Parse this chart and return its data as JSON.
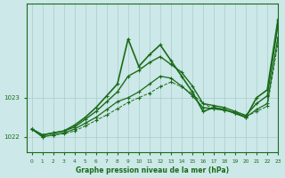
{
  "title": "Graphe pression niveau de la mer (hPa)",
  "bg_color": "#cce8e8",
  "grid_color": "#aacccc",
  "line_color": "#1a6b1a",
  "xlim": [
    -0.5,
    23
  ],
  "ylim": [
    1021.6,
    1025.4
  ],
  "yticks": [
    1022,
    1023
  ],
  "xticks": [
    0,
    1,
    2,
    3,
    4,
    5,
    6,
    7,
    8,
    9,
    10,
    11,
    12,
    13,
    14,
    15,
    16,
    17,
    18,
    19,
    20,
    21,
    22,
    23
  ],
  "series": [
    {
      "y": [
        1022.2,
        1022.05,
        1022.1,
        1022.15,
        1022.3,
        1022.5,
        1022.75,
        1023.05,
        1023.35,
        1024.5,
        1023.8,
        1024.1,
        1024.35,
        1023.95,
        1023.55,
        1023.15,
        1022.65,
        1022.75,
        1022.7,
        1022.6,
        1022.5,
        1023.0,
        1023.2,
        1025.0
      ],
      "linestyle": "-",
      "linewidth": 1.2,
      "marker": "+"
    },
    {
      "y": [
        1022.2,
        1022.05,
        1022.1,
        1022.15,
        1022.25,
        1022.45,
        1022.65,
        1022.9,
        1023.15,
        1023.55,
        1023.7,
        1023.9,
        1024.05,
        1023.85,
        1023.65,
        1023.3,
        1022.85,
        1022.8,
        1022.75,
        1022.65,
        1022.55,
        1022.85,
        1023.05,
        1024.85
      ],
      "linestyle": "-",
      "linewidth": 1.0,
      "marker": "+"
    },
    {
      "y": [
        1022.2,
        1022.0,
        1022.05,
        1022.1,
        1022.2,
        1022.35,
        1022.5,
        1022.7,
        1022.9,
        1023.0,
        1023.15,
        1023.35,
        1023.55,
        1023.5,
        1023.3,
        1023.05,
        1022.75,
        1022.72,
        1022.68,
        1022.62,
        1022.5,
        1022.7,
        1022.85,
        1024.55
      ],
      "linestyle": "-",
      "linewidth": 0.9,
      "marker": "+"
    },
    {
      "y": [
        1022.2,
        1022.0,
        1022.05,
        1022.08,
        1022.15,
        1022.28,
        1022.42,
        1022.56,
        1022.72,
        1022.88,
        1023.0,
        1023.12,
        1023.28,
        1023.4,
        1023.28,
        1023.1,
        1022.85,
        1022.72,
        1022.68,
        1022.62,
        1022.52,
        1022.65,
        1022.78,
        1024.4
      ],
      "linestyle": "--",
      "linewidth": 0.7,
      "marker": "+"
    }
  ]
}
